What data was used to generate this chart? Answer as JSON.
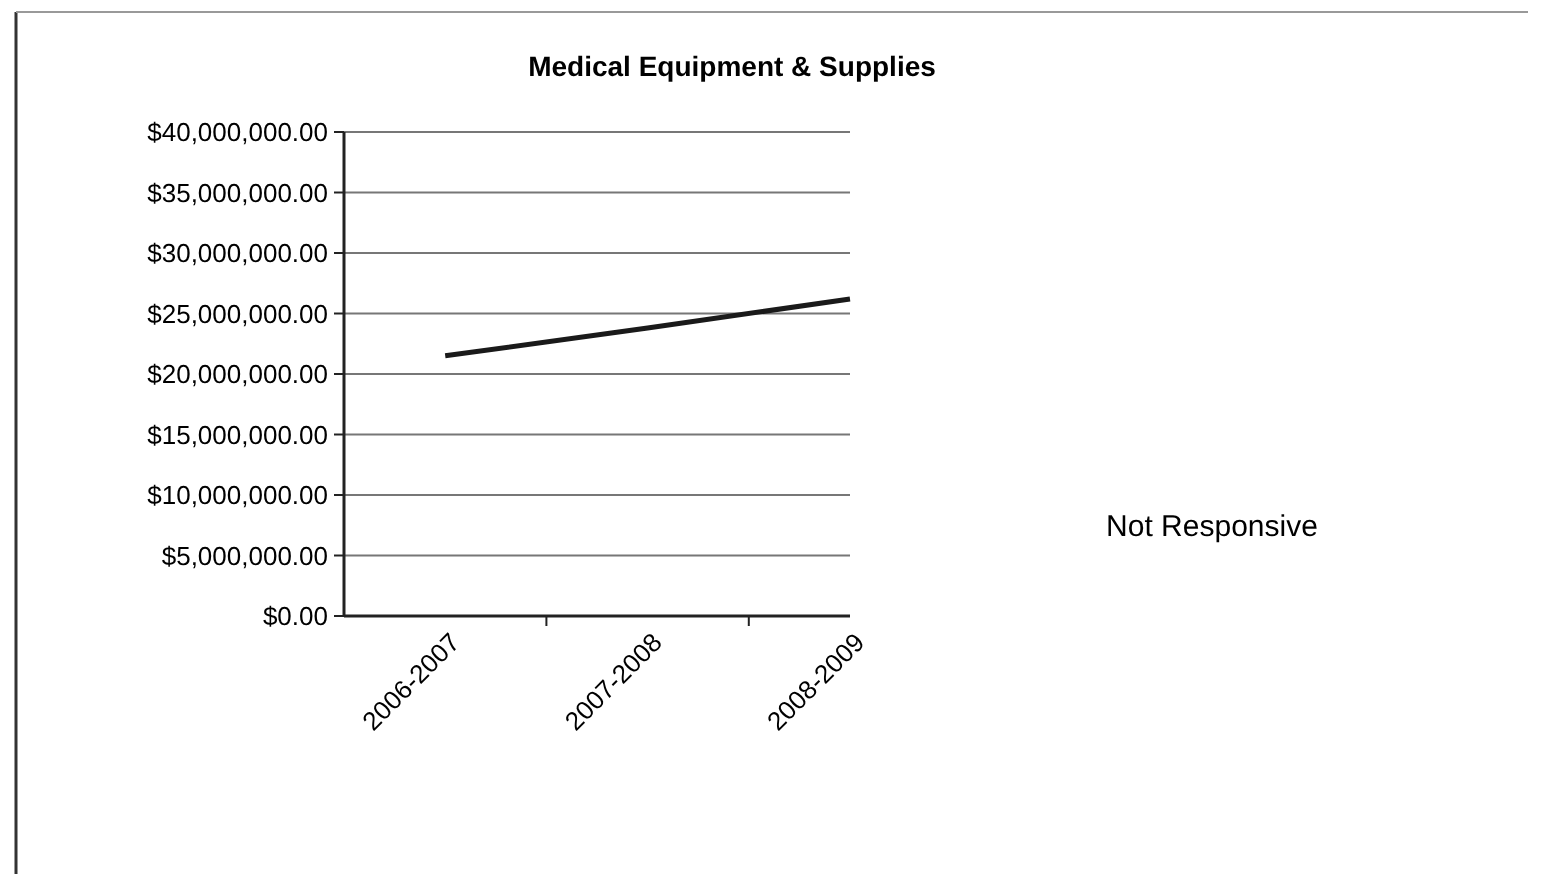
{
  "chart_data": {
    "type": "line",
    "title": "Medical Equipment & Supplies",
    "categories": [
      "2006-2007",
      "2007-2008",
      "2008-2009"
    ],
    "series": [
      {
        "color": "#1a1a1a",
        "values": [
          21500000,
          23800000,
          26200000
        ]
      }
    ],
    "ylim": [
      0,
      40000000
    ],
    "yticks": [
      {
        "value": 0,
        "label": "$0.00"
      },
      {
        "value": 5000000,
        "label": "$5,000,000.00"
      },
      {
        "value": 10000000,
        "label": "$10,000,000.00"
      },
      {
        "value": 15000000,
        "label": "$15,000,000.00"
      },
      {
        "value": 20000000,
        "label": "$20,000,000.00"
      },
      {
        "value": 25000000,
        "label": "$25,000,000.00"
      },
      {
        "value": 30000000,
        "label": "$30,000,000.00"
      },
      {
        "value": 35000000,
        "label": "$35,000,000.00"
      },
      {
        "value": 40000000,
        "label": "$40,000,000.00"
      }
    ],
    "grid": "y",
    "marker": "none",
    "line_style": "solid",
    "annotations": [
      "Not Responsive"
    ]
  }
}
